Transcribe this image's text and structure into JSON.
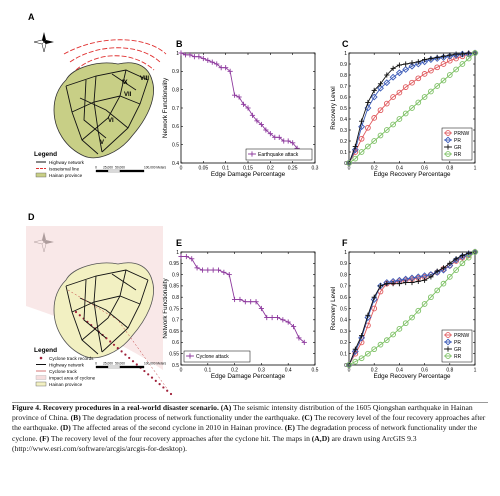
{
  "panels": {
    "A": {
      "letter": "A",
      "legend_title": "Legend",
      "legend_items": [
        {
          "label": "Highway network",
          "style": "road"
        },
        {
          "label": "Isoseismal line",
          "style": "isoseismal"
        },
        {
          "label": "Hainan province",
          "style": "province"
        }
      ],
      "scale_labels": [
        "0",
        "25,000",
        "50,000",
        "100,000 Meters"
      ],
      "zone_labels": [
        "IX",
        "VIII",
        "VII",
        "VI",
        "V"
      ]
    },
    "D": {
      "letter": "D",
      "legend_title": "Legend",
      "legend_items": [
        {
          "label": "Cyclone track records",
          "style": "dots"
        },
        {
          "label": "Highway network",
          "style": "road"
        },
        {
          "label": "Cyclone track",
          "style": "track"
        },
        {
          "label": "Impact area of cyclone",
          "style": "impact"
        },
        {
          "label": "Hainan province",
          "style": "province"
        }
      ],
      "scale_labels": [
        "0",
        "25,000",
        "50,000",
        "100,000 Meters"
      ]
    }
  },
  "chart_data": [
    {
      "panel": "B",
      "type": "line",
      "title": "",
      "xlabel": "Edge Damage Percentage",
      "ylabel": "Network Functionality",
      "xlim": [
        0,
        0.3
      ],
      "ylim": [
        0.4,
        1.0
      ],
      "xticks": [
        0,
        0.05,
        0.1,
        0.15,
        0.2,
        0.25,
        0.3
      ],
      "xtick_labels": [
        "0",
        "0.05",
        "0.1",
        "0.15",
        "0.2",
        "0.25",
        "0.3"
      ],
      "yticks": [
        0.4,
        0.5,
        0.6,
        0.7,
        0.8,
        0.9,
        1.0
      ],
      "ytick_labels": [
        "0.4",
        "0.5",
        "0.6",
        "0.7",
        "0.8",
        "0.9",
        "1"
      ],
      "legend_position": "bottom-right",
      "series": [
        {
          "name": "Earthquake attack",
          "color": "#8e3a9e",
          "marker": "plus",
          "x": [
            0,
            0.01,
            0.02,
            0.03,
            0.04,
            0.05,
            0.06,
            0.07,
            0.08,
            0.09,
            0.1,
            0.11,
            0.12,
            0.13,
            0.14,
            0.15,
            0.16,
            0.17,
            0.18,
            0.19,
            0.2,
            0.21,
            0.22,
            0.23,
            0.24,
            0.25,
            0.26
          ],
          "y": [
            1.0,
            0.99,
            0.99,
            0.98,
            0.98,
            0.97,
            0.96,
            0.95,
            0.94,
            0.92,
            0.92,
            0.9,
            0.77,
            0.76,
            0.72,
            0.7,
            0.66,
            0.63,
            0.61,
            0.58,
            0.56,
            0.54,
            0.54,
            0.52,
            0.52,
            0.51,
            0.48
          ]
        }
      ]
    },
    {
      "panel": "C",
      "type": "line",
      "title": "",
      "xlabel": "Edge Recovery Percentage",
      "ylabel": "Recovery Level",
      "xlim": [
        0,
        1
      ],
      "ylim": [
        0,
        1
      ],
      "xticks": [
        0,
        0.2,
        0.4,
        0.6,
        0.8,
        1
      ],
      "xtick_labels": [
        "0",
        "0.2",
        "0.4",
        "0.6",
        "0.8",
        "1"
      ],
      "yticks": [
        0,
        0.1,
        0.2,
        0.3,
        0.4,
        0.5,
        0.6,
        0.7,
        0.8,
        0.9,
        1
      ],
      "ytick_labels": [
        "0",
        "0.1",
        "0.2",
        "0.3",
        "0.4",
        "0.5",
        "0.6",
        "0.7",
        "0.8",
        "0.9",
        "1"
      ],
      "legend_position": "bottom-right",
      "series": [
        {
          "name": "PRNW",
          "color": "#e0595d",
          "marker": "circle",
          "x": [
            0,
            0.05,
            0.1,
            0.15,
            0.2,
            0.25,
            0.3,
            0.35,
            0.4,
            0.45,
            0.5,
            0.55,
            0.6,
            0.65,
            0.7,
            0.75,
            0.8,
            0.85,
            0.9,
            0.95,
            1.0
          ],
          "y": [
            0,
            0.1,
            0.22,
            0.32,
            0.41,
            0.48,
            0.54,
            0.6,
            0.64,
            0.69,
            0.73,
            0.77,
            0.81,
            0.84,
            0.87,
            0.9,
            0.93,
            0.95,
            0.97,
            0.99,
            1.0
          ]
        },
        {
          "name": "PR",
          "color": "#3b5bb8",
          "marker": "diamond",
          "x": [
            0,
            0.05,
            0.1,
            0.15,
            0.2,
            0.25,
            0.3,
            0.35,
            0.4,
            0.45,
            0.5,
            0.55,
            0.6,
            0.65,
            0.7,
            0.75,
            0.8,
            0.85,
            0.9,
            0.95,
            1.0
          ],
          "y": [
            0,
            0.12,
            0.33,
            0.5,
            0.6,
            0.68,
            0.73,
            0.78,
            0.82,
            0.85,
            0.88,
            0.9,
            0.92,
            0.94,
            0.95,
            0.96,
            0.97,
            0.98,
            0.99,
            0.99,
            1.0
          ]
        },
        {
          "name": "GR",
          "color": "#111111",
          "marker": "plus",
          "x": [
            0,
            0.05,
            0.1,
            0.15,
            0.2,
            0.25,
            0.3,
            0.35,
            0.4,
            0.45,
            0.5,
            0.55,
            0.6,
            0.65,
            0.7,
            0.75,
            0.8,
            0.85,
            0.9,
            0.95,
            1.0
          ],
          "y": [
            0,
            0.15,
            0.38,
            0.55,
            0.66,
            0.72,
            0.8,
            0.86,
            0.89,
            0.9,
            0.91,
            0.92,
            0.94,
            0.95,
            0.96,
            0.97,
            0.98,
            0.99,
            0.99,
            1.0,
            1.0
          ]
        },
        {
          "name": "RR",
          "color": "#7cc063",
          "marker": "circle",
          "x": [
            0,
            0.05,
            0.1,
            0.15,
            0.2,
            0.25,
            0.3,
            0.35,
            0.4,
            0.45,
            0.5,
            0.55,
            0.6,
            0.65,
            0.7,
            0.75,
            0.8,
            0.85,
            0.9,
            0.95,
            1.0
          ],
          "y": [
            0,
            0.04,
            0.1,
            0.15,
            0.2,
            0.25,
            0.3,
            0.35,
            0.4,
            0.45,
            0.5,
            0.55,
            0.6,
            0.65,
            0.7,
            0.75,
            0.8,
            0.85,
            0.9,
            0.95,
            1.0
          ]
        }
      ]
    },
    {
      "panel": "E",
      "type": "line",
      "title": "",
      "xlabel": "Edge Damage Percentage",
      "ylabel": "Network Functionality",
      "xlim": [
        0,
        0.5
      ],
      "ylim": [
        0.5,
        1.0
      ],
      "xticks": [
        0,
        0.1,
        0.2,
        0.3,
        0.4,
        0.5
      ],
      "xtick_labels": [
        "0",
        "0.1",
        "0.2",
        "0.3",
        "0.4",
        "0.5"
      ],
      "yticks": [
        0.5,
        0.55,
        0.6,
        0.65,
        0.7,
        0.75,
        0.8,
        0.85,
        0.9,
        0.95,
        1.0
      ],
      "ytick_labels": [
        "0.5",
        "0.55",
        "0.6",
        "0.65",
        "0.7",
        "0.75",
        "0.8",
        "0.85",
        "0.9",
        "0.95",
        "1"
      ],
      "legend_position": "bottom-left",
      "series": [
        {
          "name": "Cyclone attack",
          "color": "#8e3a9e",
          "marker": "plus",
          "x": [
            0,
            0.02,
            0.04,
            0.06,
            0.08,
            0.1,
            0.12,
            0.14,
            0.16,
            0.18,
            0.2,
            0.22,
            0.24,
            0.26,
            0.28,
            0.3,
            0.32,
            0.34,
            0.36,
            0.38,
            0.4,
            0.42,
            0.44,
            0.46
          ],
          "y": [
            0.98,
            0.98,
            0.97,
            0.93,
            0.92,
            0.92,
            0.92,
            0.92,
            0.91,
            0.9,
            0.79,
            0.79,
            0.78,
            0.78,
            0.78,
            0.75,
            0.71,
            0.71,
            0.71,
            0.7,
            0.69,
            0.67,
            0.62,
            0.6
          ]
        }
      ]
    },
    {
      "panel": "F",
      "type": "line",
      "title": "",
      "xlabel": "Edge Recovery Percentage",
      "ylabel": "Recovery Level",
      "xlim": [
        0,
        1
      ],
      "ylim": [
        0,
        1
      ],
      "xticks": [
        0,
        0.2,
        0.4,
        0.6,
        0.8,
        1
      ],
      "xtick_labels": [
        "0",
        "0.2",
        "0.4",
        "0.6",
        "0.8",
        "1"
      ],
      "yticks": [
        0,
        0.1,
        0.2,
        0.3,
        0.4,
        0.5,
        0.6,
        0.7,
        0.8,
        0.9,
        1
      ],
      "ytick_labels": [
        "0",
        "0.1",
        "0.2",
        "0.3",
        "0.4",
        "0.5",
        "0.6",
        "0.7",
        "0.8",
        "0.9",
        "1"
      ],
      "legend_position": "bottom-right",
      "series": [
        {
          "name": "PRNW",
          "color": "#e0595d",
          "marker": "circle",
          "x": [
            0,
            0.05,
            0.1,
            0.15,
            0.2,
            0.25,
            0.3,
            0.35,
            0.4,
            0.45,
            0.5,
            0.55,
            0.6,
            0.65,
            0.7,
            0.75,
            0.8,
            0.85,
            0.9,
            0.95,
            1.0
          ],
          "y": [
            0,
            0.1,
            0.2,
            0.35,
            0.5,
            0.65,
            0.72,
            0.73,
            0.74,
            0.75,
            0.76,
            0.77,
            0.78,
            0.8,
            0.82,
            0.85,
            0.88,
            0.92,
            0.95,
            0.97,
            1.0
          ]
        },
        {
          "name": "PR",
          "color": "#3b5bb8",
          "marker": "diamond",
          "x": [
            0,
            0.05,
            0.1,
            0.15,
            0.2,
            0.25,
            0.3,
            0.35,
            0.4,
            0.45,
            0.5,
            0.55,
            0.6,
            0.65,
            0.7,
            0.75,
            0.8,
            0.85,
            0.9,
            0.95,
            1.0
          ],
          "y": [
            0,
            0.12,
            0.24,
            0.42,
            0.58,
            0.7,
            0.73,
            0.74,
            0.75,
            0.76,
            0.77,
            0.78,
            0.79,
            0.8,
            0.82,
            0.84,
            0.88,
            0.93,
            0.96,
            0.98,
            1.0
          ]
        },
        {
          "name": "GR",
          "color": "#111111",
          "marker": "plus",
          "x": [
            0,
            0.05,
            0.1,
            0.15,
            0.2,
            0.25,
            0.3,
            0.35,
            0.4,
            0.45,
            0.5,
            0.55,
            0.6,
            0.65,
            0.7,
            0.75,
            0.8,
            0.85,
            0.9,
            0.95,
            1.0
          ],
          "y": [
            0,
            0.14,
            0.26,
            0.44,
            0.6,
            0.7,
            0.72,
            0.72,
            0.72,
            0.73,
            0.73,
            0.74,
            0.75,
            0.78,
            0.83,
            0.86,
            0.9,
            0.94,
            0.97,
            0.99,
            1.0
          ]
        },
        {
          "name": "RR",
          "color": "#7cc063",
          "marker": "circle",
          "x": [
            0,
            0.05,
            0.1,
            0.15,
            0.2,
            0.25,
            0.3,
            0.35,
            0.4,
            0.45,
            0.5,
            0.55,
            0.6,
            0.65,
            0.7,
            0.75,
            0.8,
            0.85,
            0.9,
            0.95,
            1.0
          ],
          "y": [
            0,
            0.03,
            0.06,
            0.1,
            0.14,
            0.18,
            0.22,
            0.27,
            0.32,
            0.37,
            0.42,
            0.48,
            0.54,
            0.6,
            0.66,
            0.72,
            0.78,
            0.84,
            0.9,
            0.95,
            1.0
          ]
        }
      ]
    }
  ],
  "caption": {
    "label": "Figure 4.",
    "title": "Recovery procedures in a real-world disaster scenario.",
    "parts": [
      {
        "tag": "(A)",
        "text": " The seismic intensity distribution of the 1605 Qiongshan earthquake in Hainan province of China. "
      },
      {
        "tag": "(B)",
        "text": " The degradation process of network functionality under the earthquake. "
      },
      {
        "tag": "(C)",
        "text": " The recovery level of the four recovery approaches after the earthquake. "
      },
      {
        "tag": "(D)",
        "text": " The affected areas of the second cyclone in 2010 in Hainan province. "
      },
      {
        "tag": "(E)",
        "text": " The degradation process of network functionality under the cyclone. "
      },
      {
        "tag": "(F)",
        "text": " The recovery level of the four recovery approaches after the cyclone hit. The maps in "
      },
      {
        "tag": "(A,D)",
        "text": " are drawn using ArcGIS 9.3 (http://www.esri.com/software/arcgis/arcgis-for-desktop)."
      }
    ]
  }
}
